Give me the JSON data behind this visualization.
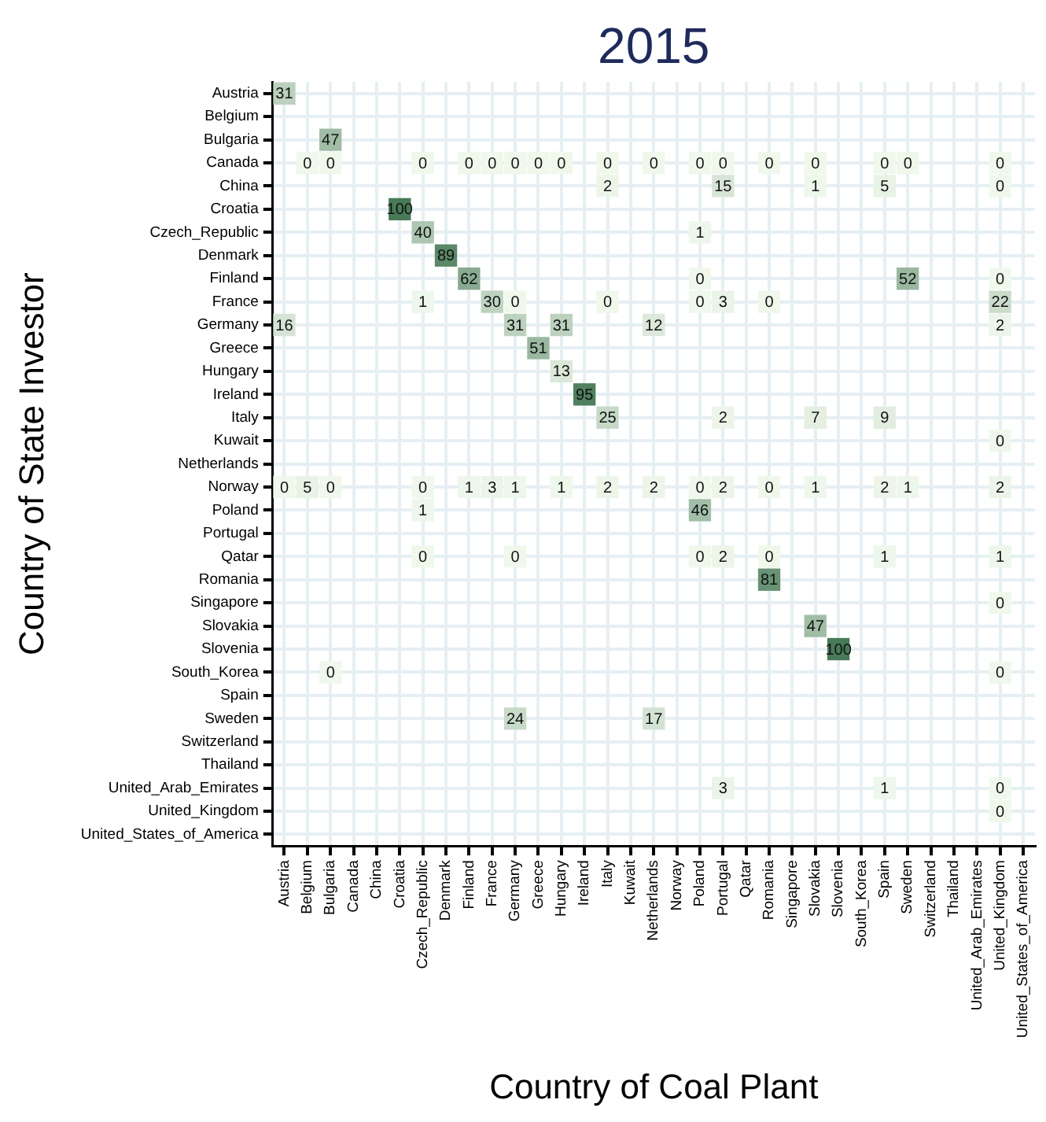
{
  "chart_data": {
    "type": "heatmap",
    "title": "2015",
    "xlabel": "Country of Coal Plant",
    "ylabel": "Country of State Investor",
    "categories": [
      "Austria",
      "Belgium",
      "Bulgaria",
      "Canada",
      "China",
      "Croatia",
      "Czech_Republic",
      "Denmark",
      "Finland",
      "France",
      "Germany",
      "Greece",
      "Hungary",
      "Ireland",
      "Italy",
      "Kuwait",
      "Netherlands",
      "Norway",
      "Poland",
      "Portugal",
      "Qatar",
      "Romania",
      "Singapore",
      "Slovakia",
      "Slovenia",
      "South_Korea",
      "Spain",
      "Sweden",
      "Switzerland",
      "Thailand",
      "United_Arab_Emirates",
      "United_Kingdom",
      "United_States_of_America"
    ],
    "y_categories": [
      "Austria",
      "Belgium",
      "Bulgaria",
      "Canada",
      "China",
      "Croatia",
      "Czech_Republic",
      "Denmark",
      "Finland",
      "France",
      "Germany",
      "Greece",
      "Hungary",
      "Ireland",
      "Italy",
      "Kuwait",
      "Netherlands",
      "Norway",
      "Poland",
      "Portugal",
      "Qatar",
      "Romania",
      "Singapore",
      "Slovakia",
      "Slovenia",
      "South_Korea",
      "Spain",
      "Sweden",
      "Switzerland",
      "Thailand",
      "United_Arab_Emirates",
      "United_Kingdom",
      "United_States_of_America"
    ],
    "cells": [
      [
        31,
        null,
        null,
        null,
        null,
        null,
        null,
        null,
        null,
        null,
        null,
        null,
        null,
        null,
        null,
        null,
        null,
        null,
        null,
        null,
        null,
        null,
        null,
        null,
        null,
        null,
        null,
        null,
        null,
        null,
        null,
        null,
        null
      ],
      [
        null,
        null,
        null,
        null,
        null,
        null,
        null,
        null,
        null,
        null,
        null,
        null,
        null,
        null,
        null,
        null,
        null,
        null,
        null,
        null,
        null,
        null,
        null,
        null,
        null,
        null,
        null,
        null,
        null,
        null,
        null,
        null,
        null
      ],
      [
        null,
        null,
        47,
        null,
        null,
        null,
        null,
        null,
        null,
        null,
        null,
        null,
        null,
        null,
        null,
        null,
        null,
        null,
        null,
        null,
        null,
        null,
        null,
        null,
        null,
        null,
        null,
        null,
        null,
        null,
        null,
        null,
        null
      ],
      [
        null,
        0,
        0,
        null,
        null,
        null,
        0,
        null,
        0,
        0,
        0,
        0,
        0,
        null,
        0,
        null,
        0,
        null,
        0,
        0,
        null,
        0,
        null,
        0,
        null,
        null,
        0,
        0,
        null,
        null,
        null,
        0,
        null
      ],
      [
        null,
        null,
        null,
        null,
        null,
        null,
        null,
        null,
        null,
        null,
        null,
        null,
        null,
        null,
        2,
        null,
        null,
        null,
        null,
        15,
        null,
        null,
        null,
        1,
        null,
        null,
        5,
        null,
        null,
        null,
        null,
        0,
        null
      ],
      [
        null,
        null,
        null,
        null,
        null,
        100,
        null,
        null,
        null,
        null,
        null,
        null,
        null,
        null,
        null,
        null,
        null,
        null,
        null,
        null,
        null,
        null,
        null,
        null,
        null,
        null,
        null,
        null,
        null,
        null,
        null,
        null,
        null
      ],
      [
        null,
        null,
        null,
        null,
        null,
        null,
        40,
        null,
        null,
        null,
        null,
        null,
        null,
        null,
        null,
        null,
        null,
        null,
        1,
        null,
        null,
        null,
        null,
        null,
        null,
        null,
        null,
        null,
        null,
        null,
        null,
        null,
        null
      ],
      [
        null,
        null,
        null,
        null,
        null,
        null,
        null,
        89,
        null,
        null,
        null,
        null,
        null,
        null,
        null,
        null,
        null,
        null,
        null,
        null,
        null,
        null,
        null,
        null,
        null,
        null,
        null,
        null,
        null,
        null,
        null,
        null,
        null
      ],
      [
        null,
        null,
        null,
        null,
        null,
        null,
        null,
        null,
        62,
        null,
        null,
        null,
        null,
        null,
        null,
        null,
        null,
        null,
        0,
        null,
        null,
        null,
        null,
        null,
        null,
        null,
        null,
        52,
        null,
        null,
        null,
        0,
        null
      ],
      [
        null,
        null,
        null,
        null,
        null,
        null,
        1,
        null,
        null,
        30,
        0,
        null,
        null,
        null,
        0,
        null,
        null,
        null,
        0,
        3,
        null,
        0,
        null,
        null,
        null,
        null,
        null,
        null,
        null,
        null,
        null,
        22,
        null
      ],
      [
        16,
        null,
        null,
        null,
        null,
        null,
        null,
        null,
        null,
        null,
        31,
        null,
        31,
        null,
        null,
        null,
        12,
        null,
        null,
        null,
        null,
        null,
        null,
        null,
        null,
        null,
        null,
        null,
        null,
        null,
        null,
        2,
        null
      ],
      [
        null,
        null,
        null,
        null,
        null,
        null,
        null,
        null,
        null,
        null,
        null,
        51,
        null,
        null,
        null,
        null,
        null,
        null,
        null,
        null,
        null,
        null,
        null,
        null,
        null,
        null,
        null,
        null,
        null,
        null,
        null,
        null,
        null
      ],
      [
        null,
        null,
        null,
        null,
        null,
        null,
        null,
        null,
        null,
        null,
        null,
        null,
        13,
        null,
        null,
        null,
        null,
        null,
        null,
        null,
        null,
        null,
        null,
        null,
        null,
        null,
        null,
        null,
        null,
        null,
        null,
        null,
        null
      ],
      [
        null,
        null,
        null,
        null,
        null,
        null,
        null,
        null,
        null,
        null,
        null,
        null,
        null,
        95,
        null,
        null,
        null,
        null,
        null,
        null,
        null,
        null,
        null,
        null,
        null,
        null,
        null,
        null,
        null,
        null,
        null,
        null,
        null
      ],
      [
        null,
        null,
        null,
        null,
        null,
        null,
        null,
        null,
        null,
        null,
        null,
        null,
        null,
        null,
        25,
        null,
        null,
        null,
        null,
        2,
        null,
        null,
        null,
        7,
        null,
        null,
        9,
        null,
        null,
        null,
        null,
        null,
        null
      ],
      [
        null,
        null,
        null,
        null,
        null,
        null,
        null,
        null,
        null,
        null,
        null,
        null,
        null,
        null,
        null,
        null,
        null,
        null,
        null,
        null,
        null,
        null,
        null,
        null,
        null,
        null,
        null,
        null,
        null,
        null,
        null,
        0,
        null
      ],
      [
        null,
        null,
        null,
        null,
        null,
        null,
        null,
        null,
        null,
        null,
        null,
        null,
        null,
        null,
        null,
        null,
        null,
        null,
        null,
        null,
        null,
        null,
        null,
        null,
        null,
        null,
        null,
        null,
        null,
        null,
        null,
        null,
        null
      ],
      [
        0,
        5,
        0,
        null,
        null,
        null,
        0,
        null,
        1,
        3,
        1,
        null,
        1,
        null,
        2,
        null,
        2,
        null,
        0,
        2,
        null,
        0,
        null,
        1,
        null,
        null,
        2,
        1,
        null,
        null,
        null,
        2,
        null
      ],
      [
        null,
        null,
        null,
        null,
        null,
        null,
        1,
        null,
        null,
        null,
        null,
        null,
        null,
        null,
        null,
        null,
        null,
        null,
        46,
        null,
        null,
        null,
        null,
        null,
        null,
        null,
        null,
        null,
        null,
        null,
        null,
        null,
        null
      ],
      [
        null,
        null,
        null,
        null,
        null,
        null,
        null,
        null,
        null,
        null,
        null,
        null,
        null,
        null,
        null,
        null,
        null,
        null,
        null,
        null,
        null,
        null,
        null,
        null,
        null,
        null,
        null,
        null,
        null,
        null,
        null,
        null,
        null
      ],
      [
        null,
        null,
        null,
        null,
        null,
        null,
        0,
        null,
        null,
        null,
        0,
        null,
        null,
        null,
        null,
        null,
        null,
        null,
        0,
        2,
        null,
        0,
        null,
        null,
        null,
        null,
        1,
        null,
        null,
        null,
        null,
        1,
        null
      ],
      [
        null,
        null,
        null,
        null,
        null,
        null,
        null,
        null,
        null,
        null,
        null,
        null,
        null,
        null,
        null,
        null,
        null,
        null,
        null,
        null,
        null,
        81,
        null,
        null,
        null,
        null,
        null,
        null,
        null,
        null,
        null,
        null,
        null
      ],
      [
        null,
        null,
        null,
        null,
        null,
        null,
        null,
        null,
        null,
        null,
        null,
        null,
        null,
        null,
        null,
        null,
        null,
        null,
        null,
        null,
        null,
        null,
        null,
        null,
        null,
        null,
        null,
        null,
        null,
        null,
        null,
        0,
        null
      ],
      [
        null,
        null,
        null,
        null,
        null,
        null,
        null,
        null,
        null,
        null,
        null,
        null,
        null,
        null,
        null,
        null,
        null,
        null,
        null,
        null,
        null,
        null,
        null,
        47,
        null,
        null,
        null,
        null,
        null,
        null,
        null,
        null,
        null
      ],
      [
        null,
        null,
        null,
        null,
        null,
        null,
        null,
        null,
        null,
        null,
        null,
        null,
        null,
        null,
        null,
        null,
        null,
        null,
        null,
        null,
        null,
        null,
        null,
        null,
        100,
        null,
        null,
        null,
        null,
        null,
        null,
        null,
        null
      ],
      [
        null,
        null,
        0,
        null,
        null,
        null,
        null,
        null,
        null,
        null,
        null,
        null,
        null,
        null,
        null,
        null,
        null,
        null,
        null,
        null,
        null,
        null,
        null,
        null,
        null,
        null,
        null,
        null,
        null,
        null,
        null,
        0,
        null
      ],
      [
        null,
        null,
        null,
        null,
        null,
        null,
        null,
        null,
        null,
        null,
        null,
        null,
        null,
        null,
        null,
        null,
        null,
        null,
        null,
        null,
        null,
        null,
        null,
        null,
        null,
        null,
        null,
        null,
        null,
        null,
        null,
        null,
        null
      ],
      [
        null,
        null,
        null,
        null,
        null,
        null,
        null,
        null,
        null,
        null,
        24,
        null,
        null,
        null,
        null,
        null,
        17,
        null,
        null,
        null,
        null,
        null,
        null,
        null,
        null,
        null,
        null,
        null,
        null,
        null,
        null,
        null,
        null
      ],
      [
        null,
        null,
        null,
        null,
        null,
        null,
        null,
        null,
        null,
        null,
        null,
        null,
        null,
        null,
        null,
        null,
        null,
        null,
        null,
        null,
        null,
        null,
        null,
        null,
        null,
        null,
        null,
        null,
        null,
        null,
        null,
        null,
        null
      ],
      [
        null,
        null,
        null,
        null,
        null,
        null,
        null,
        null,
        null,
        null,
        null,
        null,
        null,
        null,
        null,
        null,
        null,
        null,
        null,
        null,
        null,
        null,
        null,
        null,
        null,
        null,
        null,
        null,
        null,
        null,
        null,
        null,
        null
      ],
      [
        null,
        null,
        null,
        null,
        null,
        null,
        null,
        null,
        null,
        null,
        null,
        null,
        null,
        null,
        null,
        null,
        null,
        null,
        null,
        3,
        null,
        null,
        null,
        null,
        null,
        null,
        1,
        null,
        null,
        null,
        null,
        0,
        null
      ],
      [
        null,
        null,
        null,
        null,
        null,
        null,
        null,
        null,
        null,
        null,
        null,
        null,
        null,
        null,
        null,
        null,
        null,
        null,
        null,
        null,
        null,
        null,
        null,
        null,
        null,
        null,
        null,
        null,
        null,
        null,
        null,
        0,
        null
      ],
      [
        null,
        null,
        null,
        null,
        null,
        null,
        null,
        null,
        null,
        null,
        null,
        null,
        null,
        null,
        null,
        null,
        null,
        null,
        null,
        null,
        null,
        null,
        null,
        null,
        null,
        null,
        null,
        null,
        null,
        null,
        null,
        null,
        null
      ]
    ],
    "data_labels": true,
    "grid": true,
    "legend": false
  }
}
